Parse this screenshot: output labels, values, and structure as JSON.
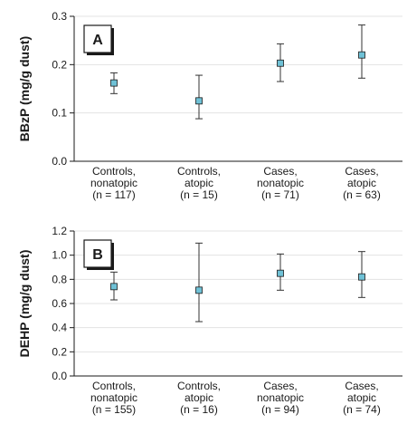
{
  "chart_data": [
    {
      "type": "scatter",
      "panel": "A",
      "ylabel": "BBzP (mg/g dust)",
      "ylim": [
        0,
        0.3
      ],
      "yticks": [
        "0.0",
        "0.1",
        "0.2",
        "0.3"
      ],
      "grid": "horizontal",
      "categories": [
        [
          "Controls,",
          "nonatopic",
          "(n = 117)"
        ],
        [
          "Controls,",
          "atopic",
          "(n = 15)"
        ],
        [
          "Cases,",
          "nonatopic",
          "(n = 71)"
        ],
        [
          "Cases,",
          "atopic",
          "(n = 63)"
        ]
      ],
      "values": [
        0.162,
        0.125,
        0.203,
        0.22
      ],
      "lower": [
        0.14,
        0.088,
        0.165,
        0.172
      ],
      "upper": [
        0.183,
        0.178,
        0.243,
        0.282
      ]
    },
    {
      "type": "scatter",
      "panel": "B",
      "ylabel": "DEHP (mg/g dust)",
      "ylim": [
        0,
        1.2
      ],
      "yticks": [
        "0.0",
        "0.2",
        "0.4",
        "0.6",
        "0.8",
        "1.0",
        "1.2"
      ],
      "grid": "horizontal",
      "categories": [
        [
          "Controls,",
          "nonatopic",
          "(n = 155)"
        ],
        [
          "Controls,",
          "atopic",
          "(n = 16)"
        ],
        [
          "Cases,",
          "nonatopic",
          "(n = 94)"
        ],
        [
          "Cases,",
          "atopic",
          "(n = 74)"
        ]
      ],
      "values": [
        0.74,
        0.71,
        0.85,
        0.82
      ],
      "lower": [
        0.63,
        0.45,
        0.71,
        0.65
      ],
      "upper": [
        0.86,
        1.1,
        1.01,
        1.03
      ]
    }
  ],
  "colors": {
    "marker": "#6fc1d6",
    "grid": "#e3e3e3",
    "axis": "#1a1a1a"
  }
}
